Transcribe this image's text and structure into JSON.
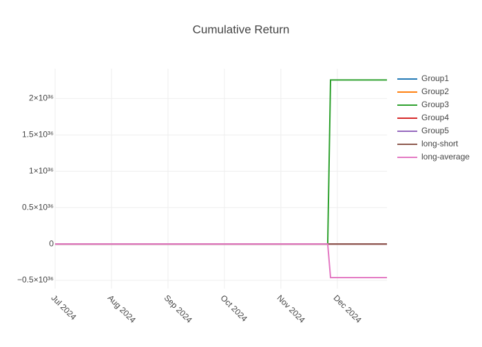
{
  "chart_data": {
    "type": "line",
    "title": "Cumulative Return",
    "x": [
      7,
      11.83,
      11.88,
      12.88
    ],
    "series": [
      {
        "name": "Group1",
        "color": "#1f77b4",
        "values": [
          0,
          0,
          0,
          0
        ]
      },
      {
        "name": "Group2",
        "color": "#ff7f0e",
        "values": [
          0,
          0,
          0,
          0
        ]
      },
      {
        "name": "Group3",
        "color": "#2ca02c",
        "values": [
          0,
          0,
          2.255e+36,
          2.255e+36
        ]
      },
      {
        "name": "Group4",
        "color": "#d62728",
        "values": [
          0,
          0,
          0,
          0
        ]
      },
      {
        "name": "Group5",
        "color": "#9467bd",
        "values": [
          0,
          0,
          0,
          0
        ]
      },
      {
        "name": "long-short",
        "color": "#8c564b",
        "values": [
          0,
          0,
          0,
          0
        ]
      },
      {
        "name": "long-average",
        "color": "#e377c2",
        "values": [
          0,
          0,
          -4.62e+35,
          -4.62e+35
        ]
      }
    ],
    "xlim": [
      7,
      12.88
    ],
    "xticks": [
      {
        "value": 7,
        "label": "Jul 2024"
      },
      {
        "value": 8,
        "label": "Aug 2024"
      },
      {
        "value": 9,
        "label": "Sep 2024"
      },
      {
        "value": 10,
        "label": "Oct 2024"
      },
      {
        "value": 11,
        "label": "Nov 2024"
      },
      {
        "value": 12,
        "label": "Dec 2024"
      }
    ],
    "ylim": [
      -6.13e+35,
      2.41e+36
    ],
    "yticks": [
      {
        "value": -5e+35,
        "label": "−0.5×10³⁶"
      },
      0,
      {
        "value": 5e+35,
        "label": "0.5×10³⁶"
      },
      {
        "value": 1e+36,
        "label": "1×10³⁶"
      },
      {
        "value": 1.5e+36,
        "label": "1.5×10³⁶"
      },
      {
        "value": 2e+36,
        "label": "2×10³⁶"
      }
    ],
    "grid": true
  }
}
